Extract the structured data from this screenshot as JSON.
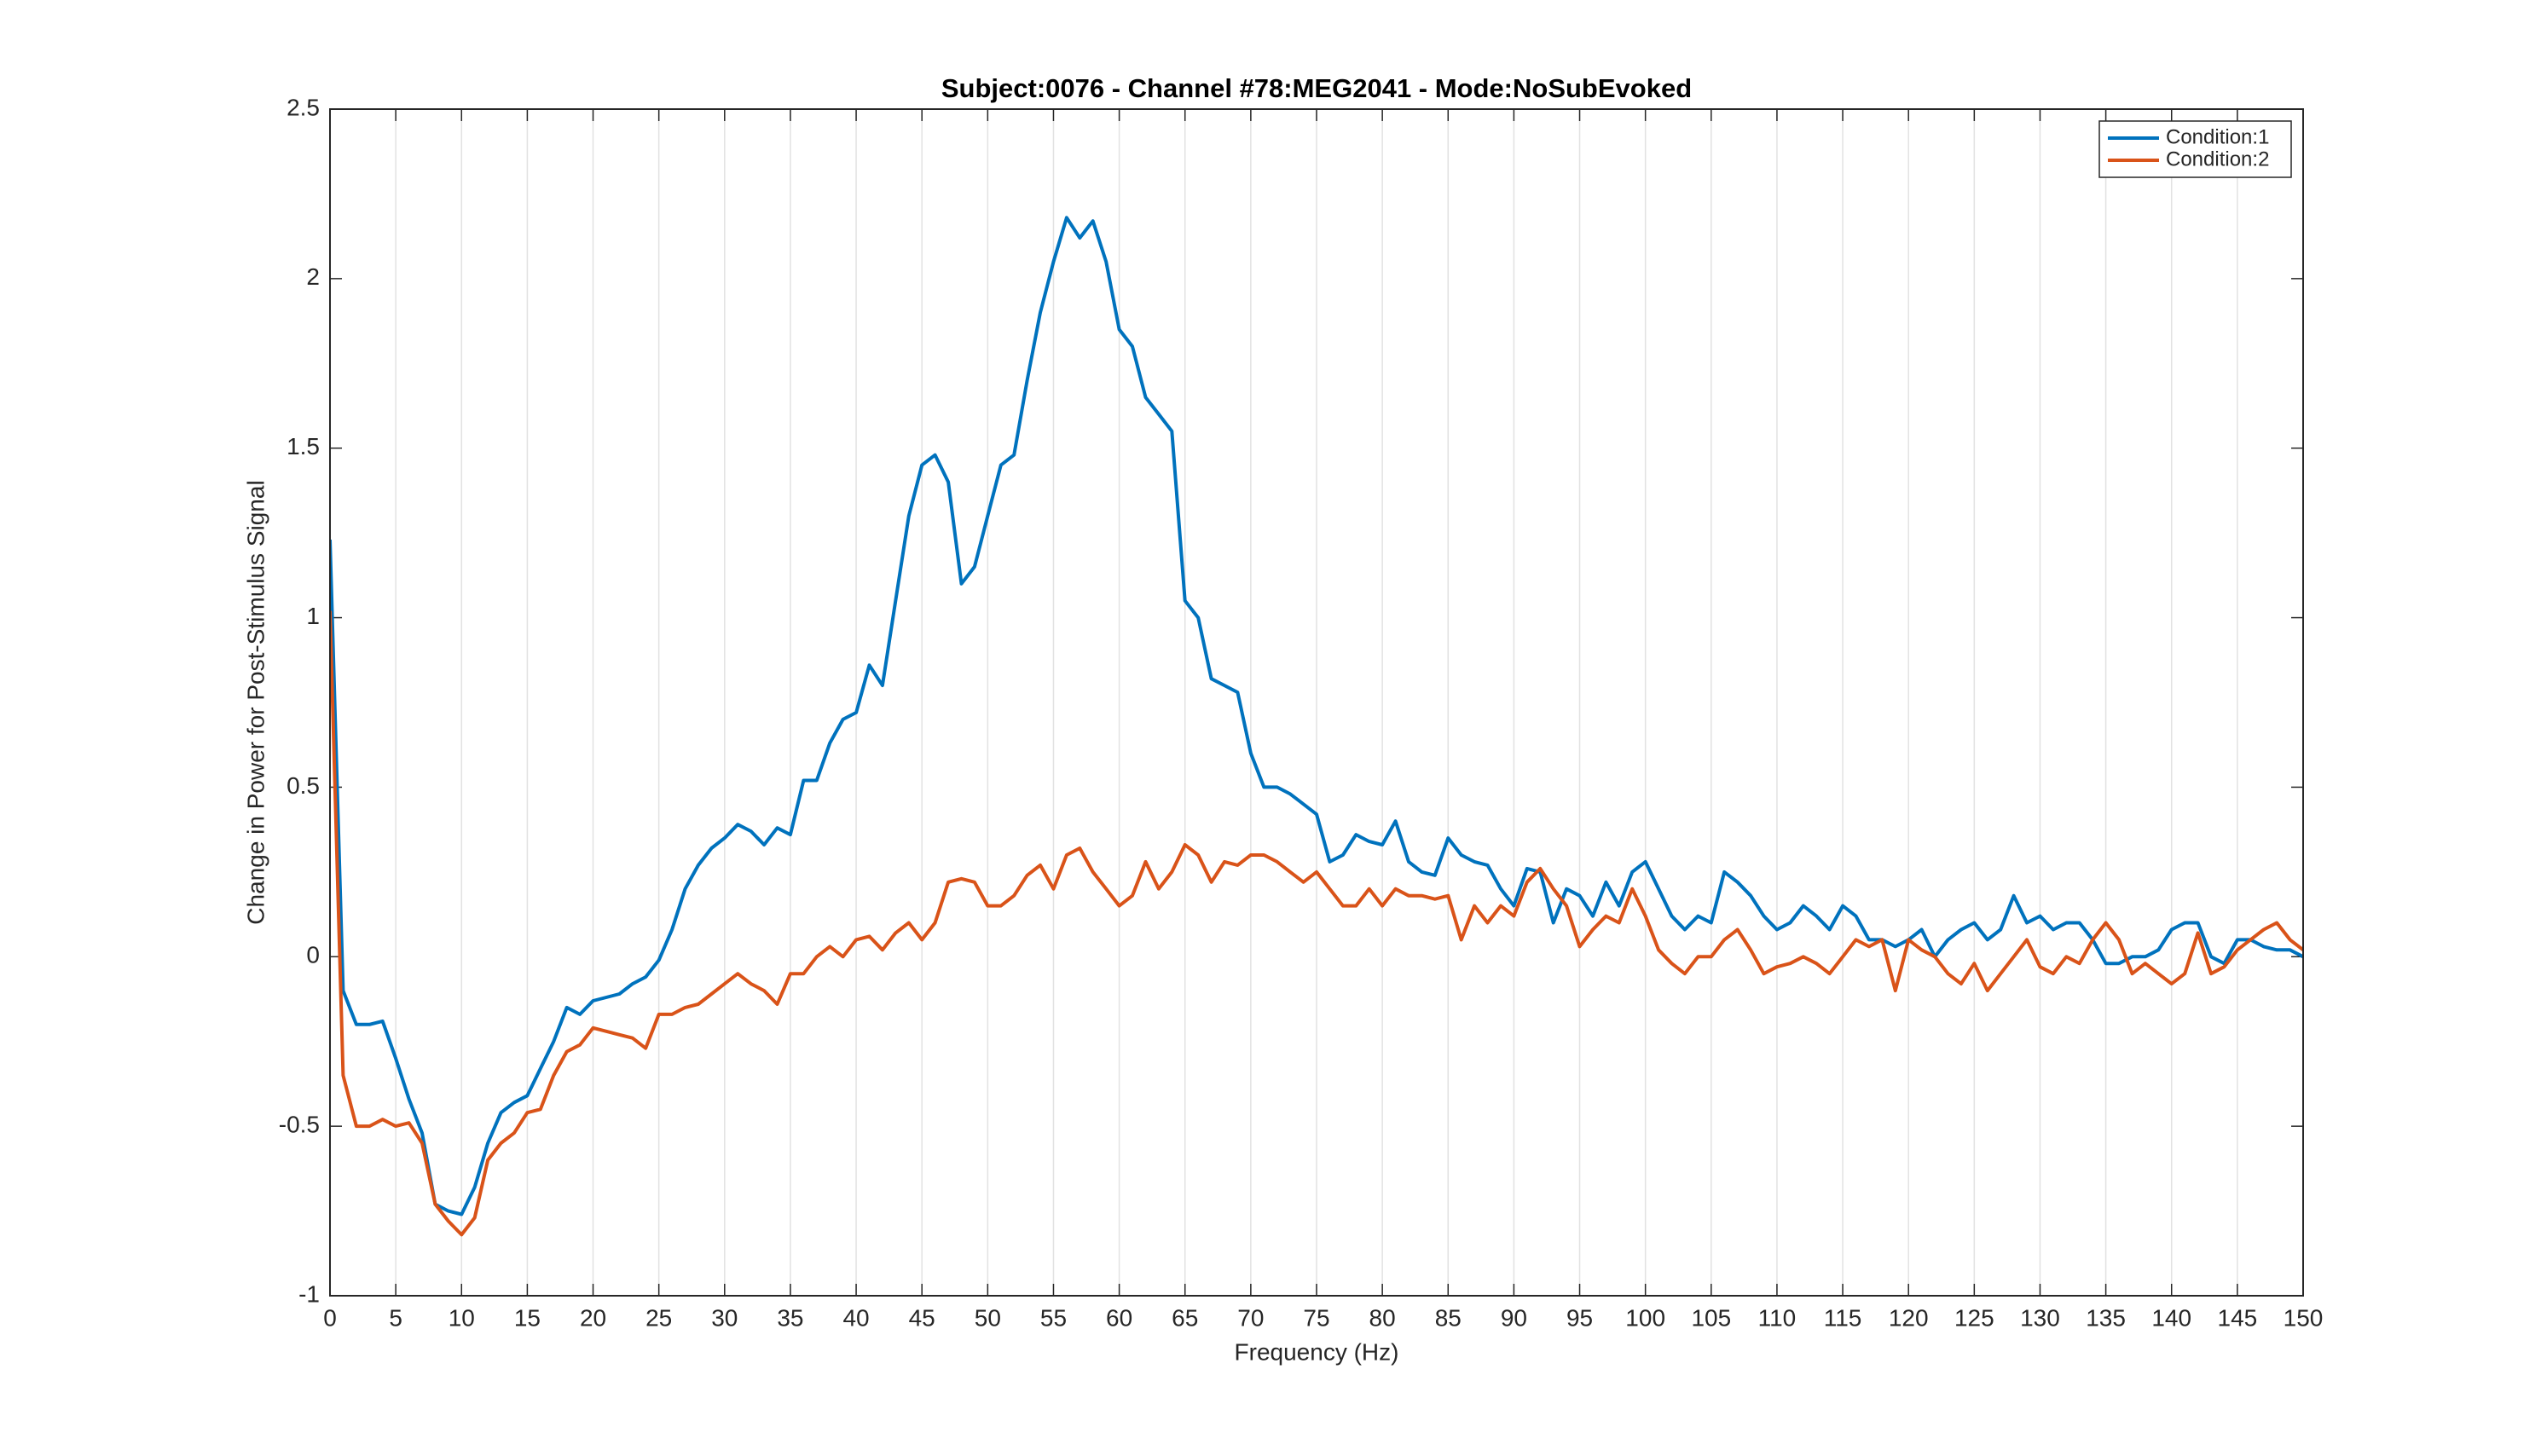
{
  "chart_data": {
    "type": "line",
    "title": "Subject:0076 - Channel #78:MEG2041 - Mode:NoSubEvoked",
    "xlabel": "Frequency (Hz)",
    "ylabel": "Change in Power for Post-Stimulus Signal",
    "x": [
      0,
      1,
      2,
      3,
      4,
      5,
      6,
      7,
      8,
      9,
      10,
      11,
      12,
      13,
      14,
      15,
      16,
      17,
      18,
      19,
      20,
      21,
      22,
      23,
      24,
      25,
      26,
      27,
      28,
      29,
      30,
      31,
      32,
      33,
      34,
      35,
      36,
      37,
      38,
      39,
      40,
      41,
      42,
      43,
      44,
      45,
      46,
      47,
      48,
      49,
      50,
      51,
      52,
      53,
      54,
      55,
      56,
      57,
      58,
      59,
      60,
      61,
      62,
      63,
      64,
      65,
      66,
      67,
      68,
      69,
      70,
      71,
      72,
      73,
      74,
      75,
      76,
      77,
      78,
      79,
      80,
      81,
      82,
      83,
      84,
      85,
      86,
      87,
      88,
      89,
      90,
      91,
      92,
      93,
      94,
      95,
      96,
      97,
      98,
      99,
      100,
      101,
      102,
      103,
      104,
      105,
      106,
      107,
      108,
      109,
      110,
      111,
      112,
      113,
      114,
      115,
      116,
      117,
      118,
      119,
      120,
      121,
      122,
      123,
      124,
      125,
      126,
      127,
      128,
      129,
      130,
      131,
      132,
      133,
      134,
      135,
      136,
      137,
      138,
      139,
      140,
      141,
      142,
      143,
      144,
      145,
      146,
      147,
      148,
      149,
      150
    ],
    "series": [
      {
        "name": "Condition:1",
        "color": "#0072bd",
        "values": [
          1.23,
          -0.1,
          -0.2,
          -0.2,
          -0.19,
          -0.3,
          -0.42,
          -0.52,
          -0.73,
          -0.75,
          -0.76,
          -0.68,
          -0.55,
          -0.46,
          -0.43,
          -0.41,
          -0.33,
          -0.25,
          -0.15,
          -0.17,
          -0.13,
          -0.12,
          -0.11,
          -0.08,
          -0.06,
          -0.01,
          0.08,
          0.2,
          0.27,
          0.32,
          0.35,
          0.39,
          0.37,
          0.33,
          0.38,
          0.36,
          0.52,
          0.52,
          0.63,
          0.7,
          0.72,
          0.86,
          0.8,
          1.05,
          1.3,
          1.45,
          1.48,
          1.4,
          1.1,
          1.15,
          1.3,
          1.45,
          1.48,
          1.7,
          1.9,
          2.05,
          2.18,
          2.12,
          2.17,
          2.05,
          1.85,
          1.8,
          1.65,
          1.6,
          1.55,
          1.05,
          1.0,
          0.82,
          0.8,
          0.78,
          0.6,
          0.5,
          0.5,
          0.48,
          0.45,
          0.42,
          0.28,
          0.3,
          0.36,
          0.34,
          0.33,
          0.4,
          0.28,
          0.25,
          0.24,
          0.35,
          0.3,
          0.28,
          0.27,
          0.2,
          0.15,
          0.26,
          0.25,
          0.1,
          0.2,
          0.18,
          0.12,
          0.22,
          0.15,
          0.25,
          0.28,
          0.2,
          0.12,
          0.08,
          0.12,
          0.1,
          0.25,
          0.22,
          0.18,
          0.12,
          0.08,
          0.1,
          0.15,
          0.12,
          0.08,
          0.15,
          0.12,
          0.05,
          0.05,
          0.03,
          0.05,
          0.08,
          0.0,
          0.05,
          0.08,
          0.1,
          0.05,
          0.08,
          0.18,
          0.1,
          0.12,
          0.08,
          0.1,
          0.1,
          0.05,
          -0.02,
          -0.02,
          0.0,
          0.0,
          0.02,
          0.08,
          0.1,
          0.1,
          0.0,
          -0.02,
          0.05,
          0.05,
          0.03,
          0.02,
          0.02,
          0.0
        ]
      },
      {
        "name": "Condition:2",
        "color": "#d95319",
        "values": [
          1.02,
          -0.35,
          -0.5,
          -0.5,
          -0.48,
          -0.5,
          -0.49,
          -0.55,
          -0.73,
          -0.78,
          -0.82,
          -0.77,
          -0.6,
          -0.55,
          -0.52,
          -0.46,
          -0.45,
          -0.35,
          -0.28,
          -0.26,
          -0.21,
          -0.22,
          -0.23,
          -0.24,
          -0.27,
          -0.17,
          -0.17,
          -0.15,
          -0.14,
          -0.11,
          -0.08,
          -0.05,
          -0.08,
          -0.1,
          -0.14,
          -0.05,
          -0.05,
          0.0,
          0.03,
          0.0,
          0.05,
          0.06,
          0.02,
          0.07,
          0.1,
          0.05,
          0.1,
          0.22,
          0.23,
          0.22,
          0.15,
          0.15,
          0.18,
          0.24,
          0.27,
          0.2,
          0.3,
          0.32,
          0.25,
          0.2,
          0.15,
          0.18,
          0.28,
          0.2,
          0.25,
          0.33,
          0.3,
          0.22,
          0.28,
          0.27,
          0.3,
          0.3,
          0.28,
          0.25,
          0.22,
          0.25,
          0.2,
          0.15,
          0.15,
          0.2,
          0.15,
          0.2,
          0.18,
          0.18,
          0.17,
          0.18,
          0.05,
          0.15,
          0.1,
          0.15,
          0.12,
          0.22,
          0.26,
          0.2,
          0.15,
          0.03,
          0.08,
          0.12,
          0.1,
          0.2,
          0.12,
          0.02,
          -0.02,
          -0.05,
          0.0,
          0.0,
          0.05,
          0.08,
          0.02,
          -0.05,
          -0.03,
          -0.02,
          0.0,
          -0.02,
          -0.05,
          0.0,
          0.05,
          0.03,
          0.05,
          -0.1,
          0.05,
          0.02,
          0.0,
          -0.05,
          -0.08,
          -0.02,
          -0.1,
          -0.05,
          0.0,
          0.05,
          -0.03,
          -0.05,
          0.0,
          -0.02,
          0.05,
          0.1,
          0.05,
          -0.05,
          -0.02,
          -0.05,
          -0.08,
          -0.05,
          0.07,
          -0.05,
          -0.03,
          0.02,
          0.05,
          0.08,
          0.1,
          0.05,
          0.02
        ]
      }
    ],
    "xlim": [
      0,
      150
    ],
    "xticks": [
      0,
      5,
      10,
      15,
      20,
      25,
      30,
      35,
      40,
      45,
      50,
      55,
      60,
      65,
      70,
      75,
      80,
      85,
      90,
      95,
      100,
      105,
      110,
      115,
      120,
      125,
      130,
      135,
      140,
      145,
      150
    ],
    "ylim": [
      -1,
      2.5
    ],
    "yticks": [
      -1,
      -0.5,
      0,
      0.5,
      1,
      1.5,
      2,
      2.5
    ],
    "grid": "x",
    "legend": "northeast"
  }
}
